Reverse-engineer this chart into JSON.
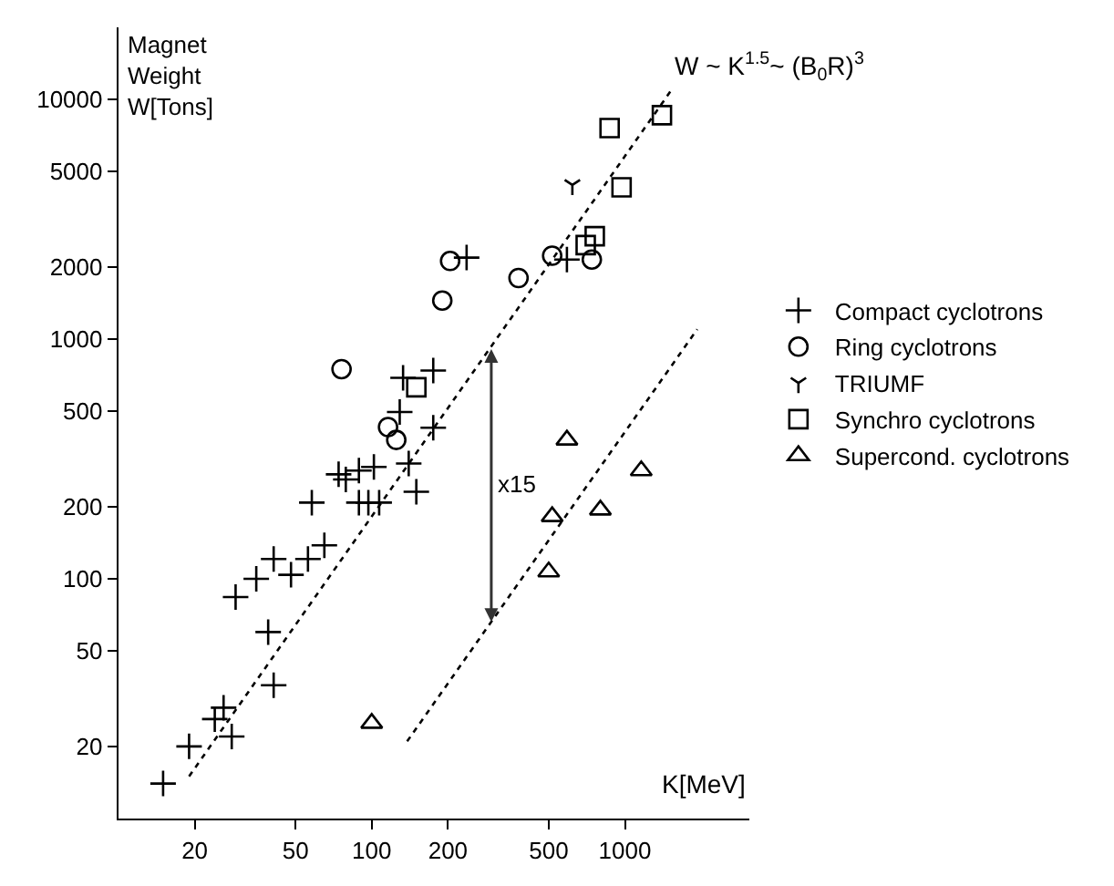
{
  "chart_data": {
    "type": "scatter",
    "xlabel": "K[MeV]",
    "ylabel": "Magnet Weight W[Tons]",
    "log": "xy",
    "legend": "right",
    "xlim": [
      10,
      3100
    ],
    "xticks": [
      20,
      50,
      100,
      200,
      500,
      1000
    ],
    "ylim": [
      10,
      20000
    ],
    "yticks": [
      20,
      50,
      100,
      200,
      500,
      1000,
      2000,
      5000,
      10000
    ],
    "annotations": [
      "W ~ K$^{1.5}$~ (B$_{0}$R)$^{3}$",
      "x15"
    ],
    "series": [
      {
        "name": "Compact cyclotrons",
        "color": "#000000",
        "marker": "cross",
        "x": [
          15,
          19,
          24,
          26,
          28,
          41,
          39,
          29,
          35,
          41,
          48,
          56,
          65,
          58,
          74,
          79,
          89,
          102,
          89,
          97,
          107,
          150,
          140,
          175,
          129,
          133,
          175,
          237,
          590
        ],
        "values": [
          14,
          20,
          26,
          29,
          22,
          36,
          60,
          84,
          100,
          121,
          104,
          121,
          138,
          208,
          273,
          260,
          283,
          293,
          208,
          208,
          208,
          231,
          303,
          427,
          497,
          690,
          740,
          2190,
          2150
        ]
      },
      {
        "name": "Ring cyclotrons",
        "color": "#000000",
        "marker": "circle",
        "x": [
          76,
          116,
          125,
          190,
          204,
          380,
          516,
          740
        ],
        "values": [
          750,
          430,
          380,
          1450,
          2120,
          1800,
          2230,
          2150
        ]
      },
      {
        "name": "TRIUMF",
        "color": "#000000",
        "x": [
          620
        ],
        "values": [
          4400
        ]
      },
      {
        "name": "Synchro cyclotrons",
        "color": "#000000",
        "marker": "square",
        "x": [
          150,
          870,
          970,
          700,
          760,
          1400
        ],
        "values": [
          630,
          7600,
          4300,
          2470,
          2690,
          8600
        ]
      },
      {
        "name": "Supercond. cyclotrons",
        "color": "#000000",
        "marker": "triangle",
        "x": [
          100,
          590,
          516,
          500,
          800,
          1160
        ],
        "values": [
          25,
          380,
          182,
          107,
          194,
          283
        ]
      },
      {
        "type": "line",
        "color": "#000000",
        "line_style": "dotted",
        "x": [
          19,
          1530
        ],
        "values": [
          15,
          11000
        ]
      },
      {
        "type": "line",
        "color": "#000000",
        "line_style": "dotted",
        "x": [
          138,
          1930
        ],
        "values": [
          21,
          1100
        ]
      }
    ]
  }
}
